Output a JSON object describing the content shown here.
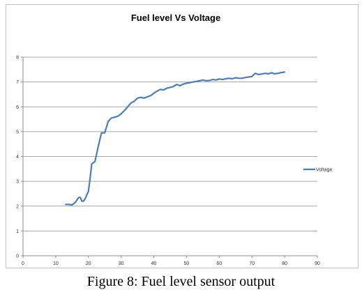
{
  "caption": "Figure 8: Fuel level sensor output",
  "chart_data": {
    "type": "line",
    "title": "Fuel level Vs Voltage",
    "xlabel": "",
    "ylabel": "",
    "xlim": [
      0,
      90
    ],
    "ylim": [
      0,
      8
    ],
    "x_ticks": [
      0,
      10,
      20,
      30,
      40,
      50,
      60,
      70,
      80,
      90
    ],
    "y_ticks": [
      0,
      1,
      2,
      3,
      4,
      5,
      6,
      7,
      8
    ],
    "grid": "horizontal",
    "legend_position": "right",
    "series": [
      {
        "name": "Voltage",
        "color": "#4a7ebb",
        "x": [
          13,
          14,
          15,
          16,
          17,
          17.5,
          18,
          18.5,
          19,
          19.5,
          20,
          20.5,
          21,
          22,
          23,
          24,
          25,
          26,
          27,
          28,
          29,
          30,
          31,
          32,
          33,
          34,
          35,
          36,
          37,
          38,
          39,
          40,
          41,
          42,
          43,
          44,
          45,
          46,
          47,
          48,
          49,
          50,
          51,
          52,
          53,
          54,
          55,
          56,
          57,
          58,
          59,
          60,
          61,
          62,
          63,
          64,
          65,
          66,
          67,
          68,
          69,
          70,
          71,
          72,
          73,
          74,
          75,
          76,
          77,
          78,
          79,
          80
        ],
        "y": [
          2.07,
          2.07,
          2.05,
          2.15,
          2.35,
          2.35,
          2.2,
          2.2,
          2.3,
          2.45,
          2.6,
          3.1,
          3.7,
          3.8,
          4.4,
          4.95,
          4.95,
          5.4,
          5.55,
          5.58,
          5.62,
          5.72,
          5.85,
          6.0,
          6.15,
          6.22,
          6.35,
          6.38,
          6.35,
          6.4,
          6.45,
          6.55,
          6.63,
          6.7,
          6.68,
          6.75,
          6.78,
          6.82,
          6.9,
          6.85,
          6.92,
          6.95,
          6.97,
          7.0,
          7.02,
          7.05,
          7.08,
          7.05,
          7.06,
          7.1,
          7.08,
          7.12,
          7.1,
          7.13,
          7.15,
          7.13,
          7.17,
          7.15,
          7.15,
          7.18,
          7.2,
          7.22,
          7.35,
          7.3,
          7.32,
          7.35,
          7.33,
          7.37,
          7.33,
          7.35,
          7.38,
          7.4
        ]
      }
    ]
  }
}
